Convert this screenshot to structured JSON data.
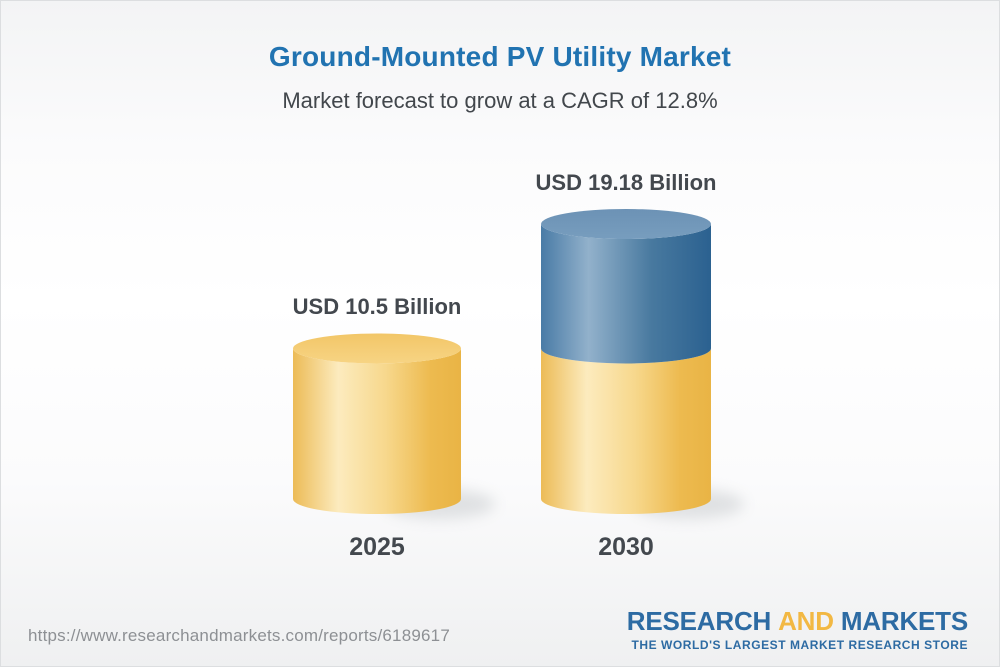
{
  "header": {
    "title": "Ground-Mounted PV Utility Market",
    "subtitle": "Market forecast to grow at a CAGR of 12.8%"
  },
  "chart_data": {
    "type": "bar",
    "variant": "3d_cylinder_stacked",
    "title": "Ground-Mounted PV Utility Market",
    "subtitle": "Market forecast to grow at a CAGR of 12.8%",
    "categories": [
      "2025",
      "2030"
    ],
    "values": [
      10.5,
      19.18
    ],
    "value_labels": [
      "USD 10.5 Billion",
      "USD 19.18 Billion"
    ],
    "unit": "USD Billion",
    "cagr": "12.8%",
    "ylim": [
      0,
      19.18
    ],
    "colors": {
      "base_gold": "#f0c263",
      "growth_blue": "#4d7fa9",
      "gold_top": "#f4cb72",
      "blue_top": "#7096b9",
      "label_text": "#43484e",
      "title_blue": "#2173b1"
    },
    "layout_hints": {
      "grid": false,
      "legend": false,
      "second_bar_stacked": "gold base equals 2025 value, blue section is growth to 2030"
    }
  },
  "footer": {
    "url": "https://www.researchandmarkets.com/reports/6189617",
    "logo": {
      "research": "RESEARCH",
      "and": "AND",
      "markets": "MARKETS",
      "tagline": "THE WORLD'S LARGEST MARKET RESEARCH STORE"
    }
  }
}
